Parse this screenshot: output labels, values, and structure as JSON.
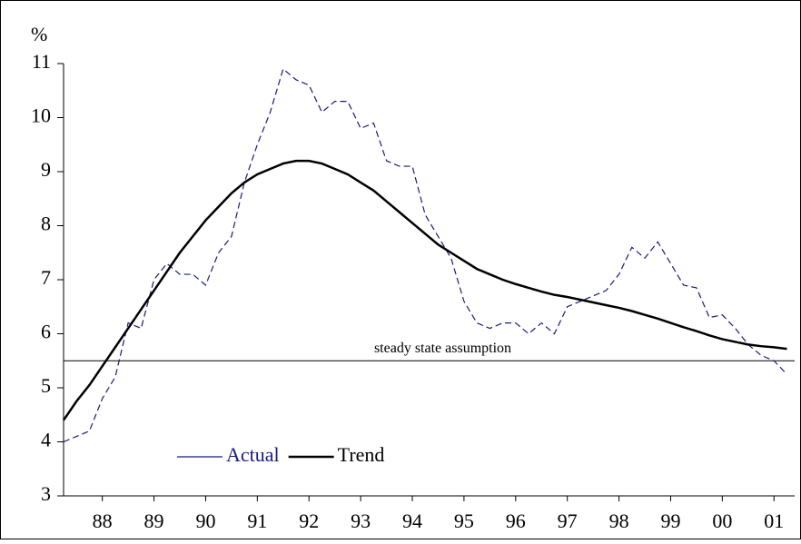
{
  "chart_data": {
    "type": "line",
    "y_label": "%",
    "x": [
      1987.75,
      1988,
      1988.25,
      1988.5,
      1988.75,
      1989,
      1989.25,
      1989.5,
      1989.75,
      1990,
      1990.25,
      1990.5,
      1990.75,
      1991,
      1991.25,
      1991.5,
      1991.75,
      1992,
      1992.25,
      1992.5,
      1992.75,
      1993,
      1993.25,
      1993.5,
      1993.75,
      1994,
      1994.25,
      1994.5,
      1994.75,
      1995,
      1995.25,
      1995.5,
      1995.75,
      1996,
      1996.25,
      1996.5,
      1996.75,
      1997,
      1997.25,
      1997.5,
      1997.75,
      1998,
      1998.25,
      1998.5,
      1998.75,
      1999,
      1999.25,
      1999.5,
      1999.75,
      2000,
      2000.25,
      2000.5,
      2000.75,
      2001,
      2001.25,
      2001.5,
      2001.75
    ],
    "series": [
      {
        "name": "Actual",
        "color": "#1a1a80",
        "dashed": true,
        "values": [
          4.0,
          4.1,
          4.2,
          4.8,
          5.2,
          6.2,
          6.1,
          7.0,
          7.3,
          7.1,
          7.1,
          6.9,
          7.5,
          7.8,
          8.8,
          9.5,
          10.1,
          10.9,
          10.7,
          10.6,
          10.1,
          10.3,
          10.3,
          9.8,
          9.9,
          9.2,
          9.1,
          9.1,
          8.2,
          7.8,
          7.4,
          6.6,
          6.2,
          6.1,
          6.2,
          6.2,
          6.0,
          6.2,
          6.0,
          6.5,
          6.6,
          6.7,
          6.8,
          7.1,
          7.6,
          7.4,
          7.7,
          7.3,
          6.9,
          6.85,
          6.3,
          6.35,
          6.1,
          5.8,
          5.6,
          5.5,
          5.25
        ]
      },
      {
        "name": "Trend",
        "color": "#000000",
        "dashed": false,
        "values": [
          4.4,
          4.75,
          5.05,
          5.4,
          5.75,
          6.1,
          6.45,
          6.8,
          7.15,
          7.5,
          7.8,
          8.1,
          8.35,
          8.6,
          8.8,
          8.95,
          9.05,
          9.15,
          9.2,
          9.2,
          9.15,
          9.05,
          8.95,
          8.8,
          8.65,
          8.45,
          8.25,
          8.05,
          7.85,
          7.65,
          7.5,
          7.35,
          7.2,
          7.1,
          7.0,
          6.92,
          6.85,
          6.78,
          6.72,
          6.68,
          6.63,
          6.58,
          6.53,
          6.48,
          6.42,
          6.35,
          6.28,
          6.2,
          6.12,
          6.05,
          5.97,
          5.9,
          5.85,
          5.8,
          5.77,
          5.75,
          5.72
        ]
      }
    ],
    "reference_line": {
      "value": 5.5,
      "label": "steady state assumption"
    },
    "xlim": [
      1987.75,
      2001.9
    ],
    "xticks": [
      {
        "value": 1988.5,
        "label": "88"
      },
      {
        "value": 1989.5,
        "label": "89"
      },
      {
        "value": 1990.5,
        "label": "90"
      },
      {
        "value": 1991.5,
        "label": "91"
      },
      {
        "value": 1992.5,
        "label": "92"
      },
      {
        "value": 1993.5,
        "label": "93"
      },
      {
        "value": 1994.5,
        "label": "94"
      },
      {
        "value": 1995.5,
        "label": "95"
      },
      {
        "value": 1996.5,
        "label": "96"
      },
      {
        "value": 1997.5,
        "label": "97"
      },
      {
        "value": 1998.5,
        "label": "98"
      },
      {
        "value": 1999.5,
        "label": "99"
      },
      {
        "value": 2000.5,
        "label": "00"
      },
      {
        "value": 2001.5,
        "label": "01"
      }
    ],
    "ylim": [
      3,
      11
    ],
    "yticks": [
      3,
      4,
      5,
      6,
      7,
      8,
      9,
      10,
      11
    ],
    "legend": "lower left"
  }
}
